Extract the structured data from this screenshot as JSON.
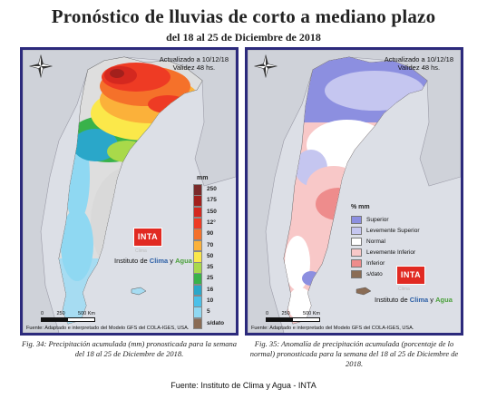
{
  "title": "Pronóstico de lluvias de corto a mediano plazo",
  "subtitle": "del 18 al 25 de Diciembre de 2018",
  "left_map": {
    "updated": "Actualizado a 10/12/18",
    "validity": "Validez 48 hs.",
    "colorbar_unit": "mm",
    "colorbar": [
      {
        "label": "250",
        "color": "#7a2a2a"
      },
      {
        "label": "175",
        "color": "#a3201c"
      },
      {
        "label": "150",
        "color": "#d4281f"
      },
      {
        "label": "12°",
        "color": "#ee3b24"
      },
      {
        "label": "90",
        "color": "#f5712a"
      },
      {
        "label": "70",
        "color": "#fbb13a"
      },
      {
        "label": "50",
        "color": "#fbe84a"
      },
      {
        "label": "35",
        "color": "#a9d94a"
      },
      {
        "label": "25",
        "color": "#39b24a"
      },
      {
        "label": "16",
        "color": "#2aa7c9"
      },
      {
        "label": "10",
        "color": "#4bc0e8"
      },
      {
        "label": "5",
        "color": "#8fd8f2"
      },
      {
        "label": "s/dato",
        "color": "#8a6c55"
      }
    ],
    "logo_text": "INTA",
    "institute_prefix": "Instituto de ",
    "institute_clima": "Clima",
    "institute_y": " y ",
    "institute_agua": "Agua",
    "clima_small": "Clima",
    "scale_ticks": [
      "0",
      "250",
      "500 Km"
    ],
    "source": "Fuente: Adaptado e interpretado del Modelo GFS del COLA-IGES, USA."
  },
  "right_map": {
    "updated": "Actualizado a 10/12/18",
    "validity": "Validez 48 hs.",
    "legend_title": "% mm",
    "legend": [
      {
        "label": "Superior",
        "color": "#8c8fe0"
      },
      {
        "label": "Levemente Superior",
        "color": "#c5c6f0"
      },
      {
        "label": "Normal",
        "color": "#ffffff"
      },
      {
        "label": "Levemente Inferior",
        "color": "#f8c8c8"
      },
      {
        "label": "Inferior",
        "color": "#ee8c8c"
      },
      {
        "label": "s/dato",
        "color": "#8a6c55"
      }
    ],
    "logo_text": "INTA",
    "institute_prefix": "Instituto de ",
    "institute_clima": "Clima",
    "institute_y": " y ",
    "institute_agua": "Agua",
    "clima_small": "Clima",
    "scale_ticks": [
      "0",
      "250",
      "500 Km"
    ],
    "source": "Fuente: Adaptado e interpretado del Modelo GFS del COLA-IGES, USA."
  },
  "captions": {
    "left": "Fig. 34: Precipitación acumulada (mm) pronosticada para la semana del 18 al 25 de Diciembre de 2018.",
    "right": "Fig. 35: Anomalía de precipitación acumulada (porcentaje de lo normal) pronosticada para la semana del 18 al 25 de Diciembre de 2018."
  },
  "footer": "Fuente: Instituto de Clima y Agua - INTA"
}
